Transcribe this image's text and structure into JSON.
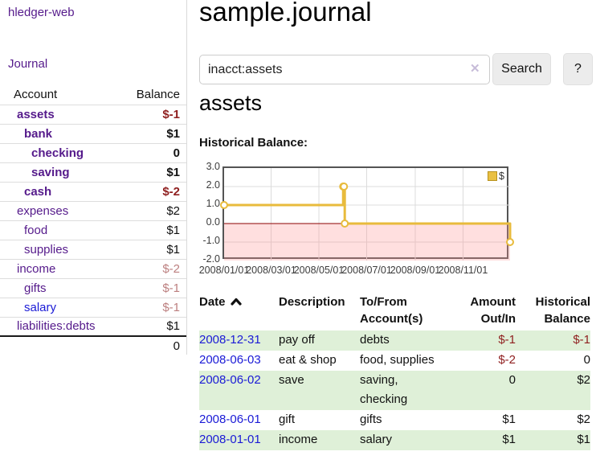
{
  "colors": {
    "accent_purple": "#551a8b",
    "link_blue": "#1a1ad6",
    "negative_strong": "#8f1f1f",
    "negative_soft": "#bc7f7f",
    "row_stripe_green": "#dff0d8",
    "chart_gold": "#e8bb3c",
    "chart_negative_region": "rgba(255,150,150,0.30)",
    "chart_zero_line": "#8b0000"
  },
  "sidebar": {
    "brand": "hledger-web",
    "nav": {
      "journal": "Journal"
    },
    "accounts_table": {
      "headers": {
        "account": "Account",
        "balance": "Balance"
      },
      "rows": [
        {
          "name": "assets",
          "level": 1,
          "bold": true,
          "balance": "$-1",
          "neg": "strong"
        },
        {
          "name": "bank",
          "level": 2,
          "bold": true,
          "balance": "$1"
        },
        {
          "name": "checking",
          "level": 3,
          "bold": true,
          "balance": "0"
        },
        {
          "name": "saving",
          "level": 3,
          "bold": true,
          "balance": "$1"
        },
        {
          "name": "cash",
          "level": 2,
          "bold": true,
          "balance": "$-2",
          "neg": "strong"
        },
        {
          "name": "expenses",
          "level": 1,
          "bold": false,
          "balance": "$2"
        },
        {
          "name": "food",
          "level": 2,
          "bold": false,
          "balance": "$1"
        },
        {
          "name": "supplies",
          "level": 2,
          "bold": false,
          "balance": "$1"
        },
        {
          "name": "income",
          "level": 1,
          "bold": false,
          "balance": "$-2",
          "neg": "soft"
        },
        {
          "name": "gifts",
          "level": 2,
          "bold": false,
          "balance": "$-1",
          "neg": "soft"
        },
        {
          "name": "salary",
          "level": 2,
          "bold": false,
          "balance": "$-1",
          "neg": "soft",
          "link": "blue"
        },
        {
          "name": "liabilities:debts",
          "level": 1,
          "bold": false,
          "balance": "$1"
        }
      ],
      "total": "0"
    }
  },
  "main": {
    "title": "sample.journal",
    "search": {
      "query": "inacct:assets",
      "clear_icon": "✕",
      "button": "Search",
      "help_button": "?"
    },
    "account_heading": "assets",
    "chart_heading": "Historical Balance:"
  },
  "chart_data": {
    "type": "line",
    "step": true,
    "title": "Historical Balance:",
    "series": [
      {
        "name": "$",
        "color": "#e8bb3c",
        "points": [
          [
            "2008-01-01",
            1
          ],
          [
            "2008-06-01",
            2
          ],
          [
            "2008-06-02",
            2
          ],
          [
            "2008-06-03",
            0
          ],
          [
            "2008-12-31",
            -1
          ]
        ]
      }
    ],
    "x_ticks": [
      "2008/01/01",
      "2008/03/01",
      "2008/05/01",
      "2008/07/01",
      "2008/09/01",
      "2008/11/01"
    ],
    "y_ticks": [
      "3.0",
      "2.0",
      "1.0",
      "0.0",
      "-1.0",
      "-2.0"
    ],
    "ylim": [
      -2,
      3
    ],
    "xlim": [
      "2008-01-01",
      "2008-12-31"
    ],
    "grid": true,
    "legend": {
      "label": "$",
      "position": "top-right"
    },
    "negative_region_shaded": true,
    "negative_region_color": "rgba(255,150,150,0.30)",
    "zero_line_color": "#8b0000"
  },
  "register": {
    "headers": {
      "date": "Date",
      "description": "Description",
      "accounts": "To/From Account(s)",
      "amount": "Amount Out/In",
      "balance": "Historical Balance"
    },
    "sort": {
      "column": "date",
      "direction": "asc"
    },
    "rows": [
      {
        "date": "2008-12-31",
        "description": "pay off",
        "accounts": "debts",
        "amount": "$-1",
        "amount_neg": true,
        "balance": "$-1",
        "balance_neg": true
      },
      {
        "date": "2008-06-03",
        "description": "eat & shop",
        "accounts": "food, supplies",
        "amount": "$-2",
        "amount_neg": true,
        "balance": "0",
        "balance_neg": false
      },
      {
        "date": "2008-06-02",
        "description": "save",
        "accounts": "saving, checking",
        "amount": "0",
        "amount_neg": false,
        "balance": "$2",
        "balance_neg": false
      },
      {
        "date": "2008-06-01",
        "description": "gift",
        "accounts": "gifts",
        "amount": "$1",
        "amount_neg": false,
        "balance": "$2",
        "balance_neg": false
      },
      {
        "date": "2008-01-01",
        "description": "income",
        "accounts": "salary",
        "amount": "$1",
        "amount_neg": false,
        "balance": "$1",
        "balance_neg": false
      }
    ]
  }
}
